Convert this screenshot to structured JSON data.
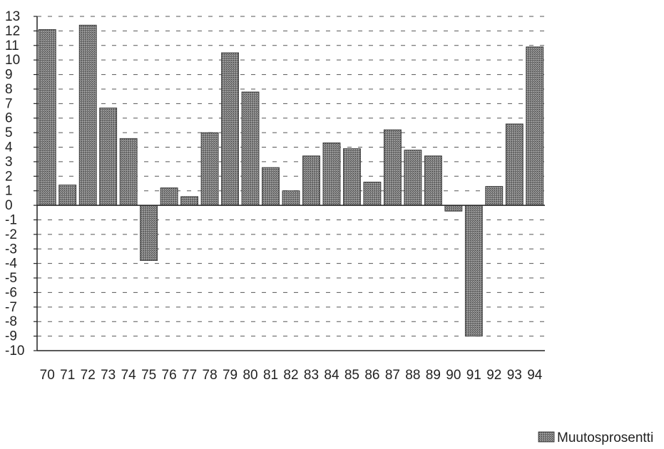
{
  "chart_data": {
    "type": "bar",
    "title": "",
    "xlabel": "",
    "ylabel": "",
    "ylim": [
      -10,
      13
    ],
    "yticks": [
      13,
      12,
      11,
      10,
      9,
      8,
      7,
      6,
      5,
      4,
      3,
      2,
      1,
      0,
      -1,
      -2,
      -3,
      -4,
      -5,
      -6,
      -7,
      -8,
      -9,
      -10
    ],
    "grid": "dashed horizontal",
    "legend_position": "bottom-right",
    "categories": [
      "70",
      "71",
      "72",
      "73",
      "74",
      "75",
      "76",
      "77",
      "78",
      "79",
      "80",
      "81",
      "82",
      "83",
      "84",
      "85",
      "86",
      "87",
      "88",
      "89",
      "90",
      "91",
      "92",
      "93",
      "94"
    ],
    "series": [
      {
        "name": "Muutosprosentti",
        "color": "#7a7a7a",
        "values": [
          12.1,
          1.4,
          12.4,
          6.7,
          4.6,
          -3.8,
          1.2,
          0.6,
          5.0,
          10.5,
          7.8,
          2.6,
          1.0,
          3.4,
          4.3,
          3.9,
          1.6,
          5.2,
          3.8,
          3.4,
          -0.4,
          -9.0,
          1.3,
          5.6,
          10.9
        ]
      }
    ]
  }
}
